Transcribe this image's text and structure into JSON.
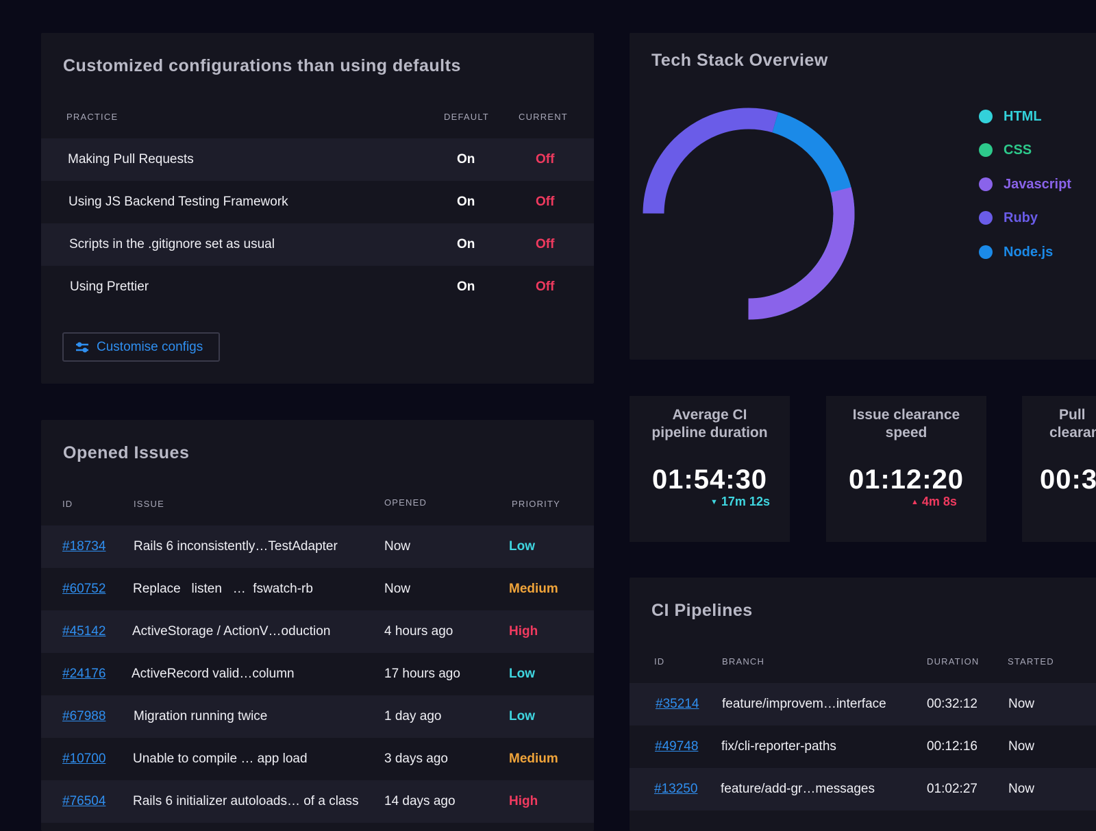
{
  "config": {
    "title": "Customized configurations than using defaults",
    "headers": {
      "practice": "PRACTICE",
      "default": "DEFAULT",
      "current": "CURRENT"
    },
    "rows": [
      {
        "practice": "Making Pull Requests",
        "default": "On",
        "current": "Off"
      },
      {
        "practice": "Using JS Backend Testing Framework",
        "default": "On",
        "current": "Off"
      },
      {
        "practice": "Scripts in the .gitignore set as usual",
        "default": "On",
        "current": "Off"
      },
      {
        "practice": "Using Prettier",
        "default": "On",
        "current": "Off"
      }
    ],
    "button_label": "Customise configs",
    "button_icon": "sliders-icon"
  },
  "tech_stack": {
    "title": "Tech Stack Overview",
    "legend": [
      {
        "label": "HTML",
        "color": "#33d1da"
      },
      {
        "label": "CSS",
        "color": "#2dc98b"
      },
      {
        "label": "Javascript",
        "color": "#8a63ea"
      },
      {
        "label": "Ruby",
        "color": "#6a5ce8"
      },
      {
        "label": "Node.js",
        "color": "#1b8ae8"
      }
    ]
  },
  "stats": [
    {
      "title_line1": "Average CI",
      "title_line2": "pipeline duration",
      "value": "01:54:30",
      "delta": "17m 12s",
      "direction": "down",
      "delta_color": "#3fd6e0"
    },
    {
      "title_line1": "Issue clearance",
      "title_line2": "speed",
      "value": "01:12:20",
      "delta": "4m 8s",
      "direction": "up",
      "delta_color": "#f03a5f"
    },
    {
      "title_line1": "Pull",
      "title_line2": "clearan",
      "value": "00:3"
    }
  ],
  "issues": {
    "title": "Opened Issues",
    "headers": {
      "id": "ID",
      "issue": "ISSUE",
      "opened": "OPENED",
      "priority": "PRIORITY"
    },
    "rows": [
      {
        "id": "#18734",
        "issue": "Rails 6 inconsistently…TestAdapter",
        "opened": "Now",
        "priority": "Low"
      },
      {
        "id": "#60752",
        "issue": "Replace   listen   …  fswatch-rb",
        "opened": "Now",
        "priority": "Medium"
      },
      {
        "id": "#45142",
        "issue": "ActiveStorage / ActionV…oduction",
        "opened": "4 hours ago",
        "priority": "High"
      },
      {
        "id": "#24176",
        "issue": "ActiveRecord valid…column",
        "opened": "17 hours ago",
        "priority": "Low"
      },
      {
        "id": "#67988",
        "issue": "Migration running twice",
        "opened": "1 day ago",
        "priority": "Low"
      },
      {
        "id": "#10700",
        "issue": "Unable to compile … app load",
        "opened": "3 days ago",
        "priority": "Medium"
      },
      {
        "id": "#76504",
        "issue": "Rails 6 initializer autoloads… of a class",
        "opened": "14 days ago",
        "priority": "High"
      }
    ]
  },
  "pipelines": {
    "title": "CI Pipelines",
    "headers": {
      "id": "ID",
      "branch": "BRANCH",
      "duration": "DURATION",
      "started": "STARTED"
    },
    "rows": [
      {
        "id": "#35214",
        "branch": "feature/improvem…interface",
        "duration": "00:32:12",
        "started": "Now"
      },
      {
        "id": "#49748",
        "branch": "fix/cli-reporter-paths",
        "duration": "00:12:16",
        "started": "Now"
      },
      {
        "id": "#13250",
        "branch": "feature/add-gr…messages",
        "duration": "01:02:27",
        "started": "Now"
      }
    ]
  }
}
